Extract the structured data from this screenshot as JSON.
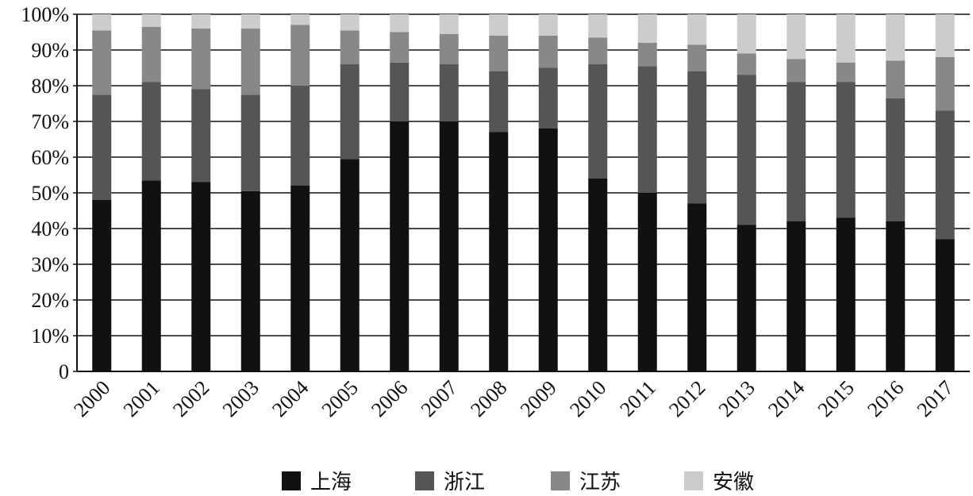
{
  "chart_data": {
    "type": "stacked_bar",
    "categories": [
      "2000",
      "2001",
      "2002",
      "2003",
      "2004",
      "2005",
      "2006",
      "2007",
      "2008",
      "2009",
      "2010",
      "2011",
      "2012",
      "2013",
      "2014",
      "2015",
      "2016",
      "2017"
    ],
    "series": [
      {
        "name": "上海",
        "color": "#111111",
        "values": [
          48,
          53.5,
          53,
          50.5,
          52,
          59.5,
          70,
          70,
          67,
          68,
          54,
          50,
          47,
          41,
          42,
          43,
          42,
          37
        ]
      },
      {
        "name": "浙江",
        "color": "#555555",
        "values": [
          29.5,
          27.5,
          26,
          27,
          28,
          26.5,
          16.5,
          16,
          17,
          17,
          32,
          35.5,
          37,
          42,
          39,
          38,
          34.5,
          36
        ]
      },
      {
        "name": "江苏",
        "color": "#888888",
        "values": [
          18,
          15.5,
          17,
          18.5,
          17,
          9.5,
          8.5,
          8.5,
          10,
          9,
          7.5,
          6.5,
          7.5,
          6,
          6.5,
          5.5,
          10.5,
          15
        ]
      },
      {
        "name": "安徽",
        "color": "#cccccc",
        "values": [
          4.5,
          3.5,
          4,
          4,
          3,
          4.5,
          5,
          5.5,
          6,
          6,
          6.5,
          8,
          8.5,
          11,
          12.5,
          13.5,
          13,
          12
        ]
      }
    ],
    "ylim": [
      0,
      100
    ],
    "yticks": [
      0,
      {
        "value": 10,
        "label": "10%"
      },
      {
        "value": 20,
        "label": "20%"
      },
      {
        "value": 30,
        "label": "30%"
      },
      {
        "value": 40,
        "label": "40%"
      },
      {
        "value": 50,
        "label": "50%"
      },
      {
        "value": 60,
        "label": "60%"
      },
      {
        "value": 70,
        "label": "70%"
      },
      {
        "value": 80,
        "label": "80%"
      },
      {
        "value": 90,
        "label": "90%"
      },
      {
        "value": 100,
        "label": "100%"
      }
    ],
    "grid": true,
    "legend": "bottom"
  }
}
